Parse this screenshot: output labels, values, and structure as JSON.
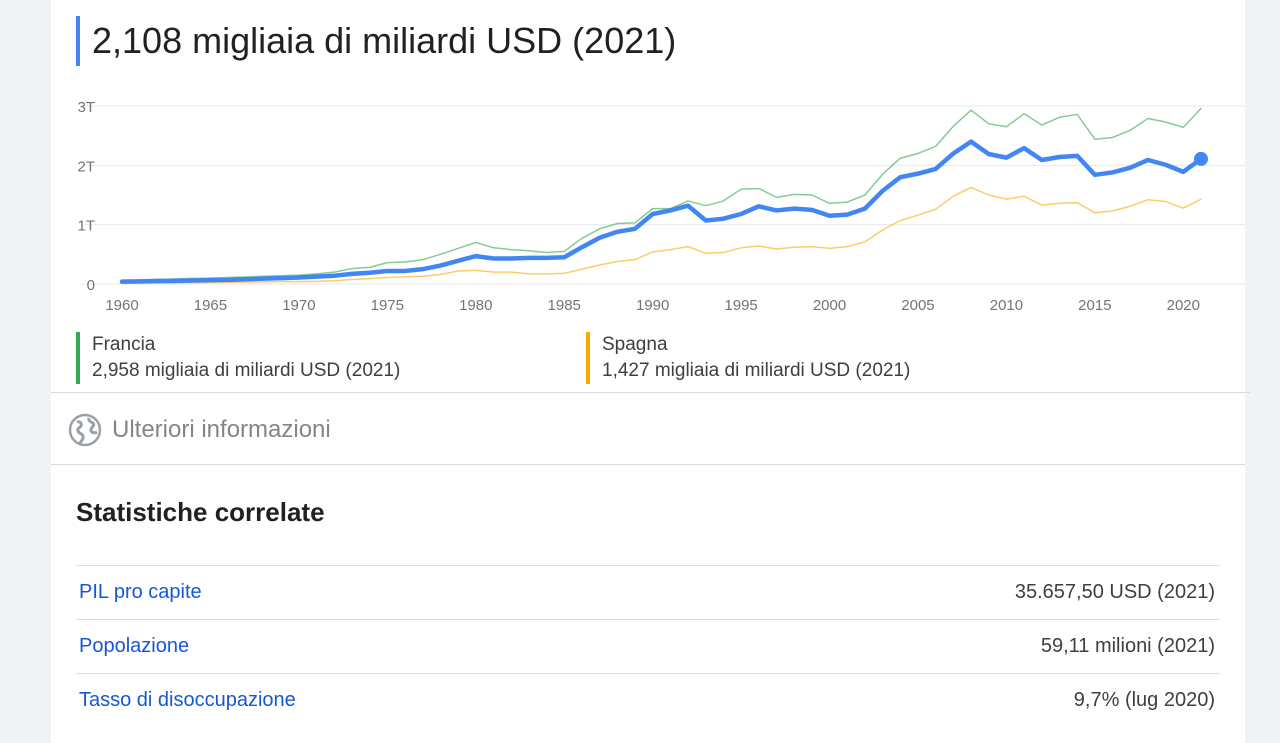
{
  "header": {
    "value": "2,108 migliaia di miliardi USD (2021)"
  },
  "colors": {
    "main": "#4285f4",
    "francia": "#34a853",
    "spagna": "#f9ab00",
    "grid": "#e8eaed",
    "axis_text": "#70757a"
  },
  "chart_data": {
    "type": "line",
    "title": "",
    "xlabel": "",
    "ylabel": "",
    "ylim": [
      0,
      3
    ],
    "xlim": [
      1960,
      2021
    ],
    "y_ticks": [
      0,
      1,
      2,
      3
    ],
    "y_tick_labels": [
      "0",
      "1T",
      "2T",
      "3T"
    ],
    "x_ticks": [
      1960,
      1965,
      1970,
      1975,
      1980,
      1985,
      1990,
      1995,
      2000,
      2005,
      2010,
      2015,
      2020
    ],
    "grid": true,
    "x": [
      1960,
      1961,
      1962,
      1963,
      1964,
      1965,
      1966,
      1967,
      1968,
      1969,
      1970,
      1971,
      1972,
      1973,
      1974,
      1975,
      1976,
      1977,
      1978,
      1979,
      1980,
      1981,
      1982,
      1983,
      1984,
      1985,
      1986,
      1987,
      1988,
      1989,
      1990,
      1991,
      1992,
      1993,
      1994,
      1995,
      1996,
      1997,
      1998,
      1999,
      2000,
      2001,
      2002,
      2003,
      2004,
      2005,
      2006,
      2007,
      2008,
      2009,
      2010,
      2011,
      2012,
      2013,
      2014,
      2015,
      2016,
      2017,
      2018,
      2019,
      2020,
      2021
    ],
    "series": [
      {
        "name": "",
        "role": "main",
        "values": [
          0.04,
          0.045,
          0.05,
          0.055,
          0.06,
          0.065,
          0.07,
          0.08,
          0.09,
          0.1,
          0.11,
          0.125,
          0.14,
          0.17,
          0.19,
          0.22,
          0.22,
          0.25,
          0.31,
          0.39,
          0.47,
          0.43,
          0.43,
          0.44,
          0.44,
          0.45,
          0.62,
          0.78,
          0.88,
          0.93,
          1.18,
          1.24,
          1.32,
          1.07,
          1.1,
          1.18,
          1.31,
          1.24,
          1.27,
          1.25,
          1.15,
          1.17,
          1.27,
          1.57,
          1.8,
          1.86,
          1.94,
          2.2,
          2.4,
          2.19,
          2.13,
          2.29,
          2.09,
          2.14,
          2.16,
          1.84,
          1.88,
          1.96,
          2.09,
          2.01,
          1.89,
          2.108
        ]
      },
      {
        "name": "Francia",
        "role": "francia",
        "values": [
          0.06,
          0.065,
          0.075,
          0.085,
          0.095,
          0.1,
          0.11,
          0.12,
          0.13,
          0.14,
          0.15,
          0.17,
          0.2,
          0.26,
          0.28,
          0.36,
          0.37,
          0.41,
          0.5,
          0.6,
          0.7,
          0.61,
          0.58,
          0.56,
          0.53,
          0.55,
          0.77,
          0.93,
          1.02,
          1.03,
          1.27,
          1.27,
          1.4,
          1.32,
          1.4,
          1.6,
          1.61,
          1.46,
          1.51,
          1.5,
          1.36,
          1.38,
          1.5,
          1.85,
          2.12,
          2.2,
          2.32,
          2.66,
          2.93,
          2.7,
          2.65,
          2.87,
          2.68,
          2.81,
          2.86,
          2.44,
          2.47,
          2.59,
          2.79,
          2.73,
          2.64,
          2.958
        ]
      },
      {
        "name": "Spagna",
        "role": "spagna",
        "values": [
          0.012,
          0.014,
          0.016,
          0.019,
          0.022,
          0.025,
          0.03,
          0.032,
          0.035,
          0.04,
          0.04,
          0.045,
          0.055,
          0.075,
          0.09,
          0.11,
          0.12,
          0.13,
          0.16,
          0.22,
          0.23,
          0.2,
          0.2,
          0.17,
          0.17,
          0.18,
          0.25,
          0.32,
          0.38,
          0.41,
          0.54,
          0.58,
          0.63,
          0.52,
          0.53,
          0.61,
          0.64,
          0.59,
          0.62,
          0.63,
          0.6,
          0.63,
          0.71,
          0.91,
          1.07,
          1.16,
          1.26,
          1.48,
          1.63,
          1.5,
          1.43,
          1.48,
          1.33,
          1.36,
          1.37,
          1.2,
          1.23,
          1.31,
          1.42,
          1.39,
          1.28,
          1.427
        ]
      }
    ]
  },
  "legend": [
    {
      "name": "Francia",
      "value": "2,958 migliaia di miliardi USD (2021)"
    },
    {
      "name": "Spagna",
      "value": "1,427 migliaia di miliardi USD (2021)"
    }
  ],
  "more_info": {
    "label": "Ulteriori informazioni",
    "icon": "globe-icon"
  },
  "related": {
    "title": "Statistiche correlate",
    "rows": [
      {
        "label": "PIL pro capite",
        "value": "35.657,50 USD (2021)"
      },
      {
        "label": "Popolazione",
        "value": "59,11 milioni (2021)"
      },
      {
        "label": "Tasso di disoccupazione",
        "value": "9,7% (lug 2020)"
      }
    ]
  }
}
